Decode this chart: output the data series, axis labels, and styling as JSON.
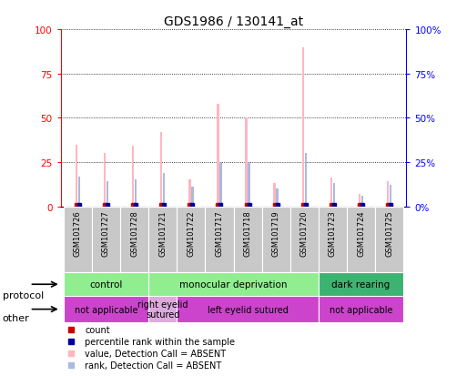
{
  "title": "GDS1986 / 130141_at",
  "samples": [
    "GSM101726",
    "GSM101727",
    "GSM101728",
    "GSM101721",
    "GSM101722",
    "GSM101717",
    "GSM101718",
    "GSM101719",
    "GSM101720",
    "GSM101723",
    "GSM101724",
    "GSM101725"
  ],
  "value_absent": [
    35,
    30,
    34,
    42,
    15,
    58,
    50,
    13,
    90,
    16,
    7,
    14
  ],
  "rank_absent": [
    17,
    14,
    15,
    19,
    11,
    25,
    25,
    10,
    30,
    13,
    6,
    12
  ],
  "yticks": [
    0,
    25,
    50,
    75,
    100
  ],
  "protocol_groups": [
    {
      "label": "control",
      "start": 0,
      "end": 3,
      "color": "#90EE90"
    },
    {
      "label": "monocular deprivation",
      "start": 3,
      "end": 9,
      "color": "#90EE90"
    },
    {
      "label": "dark rearing",
      "start": 9,
      "end": 12,
      "color": "#3CB371"
    }
  ],
  "other_groups": [
    {
      "label": "not applicable",
      "start": 0,
      "end": 3,
      "color": "#CC44CC"
    },
    {
      "label": "right eyelid\nsutured",
      "start": 3,
      "end": 4,
      "color": "#DDAADD"
    },
    {
      "label": "left eyelid sutured",
      "start": 4,
      "end": 9,
      "color": "#CC44CC"
    },
    {
      "label": "not applicable",
      "start": 9,
      "end": 12,
      "color": "#CC44CC"
    }
  ],
  "color_value_absent": "#FFB6C1",
  "color_rank_absent": "#AABBDD",
  "color_count": "#CC0000",
  "color_rank_present": "#000099",
  "legend_items": [
    {
      "color": "#CC0000",
      "label": "count"
    },
    {
      "color": "#000099",
      "label": "percentile rank within the sample"
    },
    {
      "color": "#FFB6C1",
      "label": "value, Detection Call = ABSENT"
    },
    {
      "color": "#AABBDD",
      "label": "rank, Detection Call = ABSENT"
    }
  ]
}
